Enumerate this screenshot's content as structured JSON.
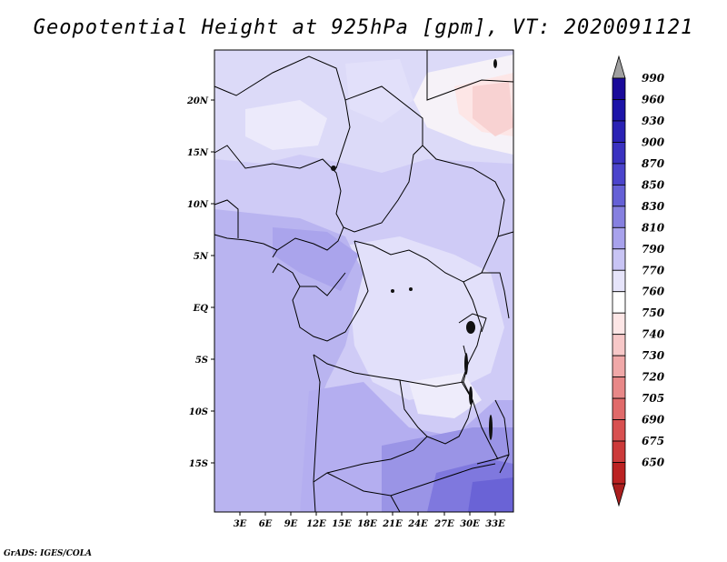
{
  "title": "Geopotential Height at 925hPa [gpm], VT: 2020091121",
  "credit": "GrADS: IGES/COLA",
  "map": {
    "lat_labels": [
      "20N",
      "15N",
      "10N",
      "5N",
      "EQ",
      "5S",
      "10S",
      "15S"
    ],
    "lon_labels": [
      "3E",
      "6E",
      "9E",
      "12E",
      "15E",
      "18E",
      "21E",
      "24E",
      "27E",
      "30E",
      "33E"
    ]
  },
  "colorbar": {
    "levels": [
      {
        "label": "990",
        "color": "#1a0a9a"
      },
      {
        "label": "960",
        "color": "#1c14a8"
      },
      {
        "label": "930",
        "color": "#2a22b4"
      },
      {
        "label": "900",
        "color": "#3a32c0"
      },
      {
        "label": "870",
        "color": "#4b44cc"
      },
      {
        "label": "850",
        "color": "#6560d6"
      },
      {
        "label": "830",
        "color": "#8680e0"
      },
      {
        "label": "810",
        "color": "#a8a2ec"
      },
      {
        "label": "790",
        "color": "#c8c4f4"
      },
      {
        "label": "770",
        "color": "#e6e4fa"
      },
      {
        "label": "760",
        "color": "#ffffff"
      },
      {
        "label": "750",
        "color": "#fde6e6"
      },
      {
        "label": "740",
        "color": "#f7c8c8"
      },
      {
        "label": "730",
        "color": "#f0a8a8"
      },
      {
        "label": "720",
        "color": "#e88888"
      },
      {
        "label": "705",
        "color": "#e06a6a"
      },
      {
        "label": "690",
        "color": "#d85050"
      },
      {
        "label": "675",
        "color": "#cc3a3a"
      },
      {
        "label": "650",
        "color": "#bb2222"
      }
    ],
    "top_arrow_color": "#a0a0a0",
    "bottom_arrow_color": "#aa1e1e"
  }
}
